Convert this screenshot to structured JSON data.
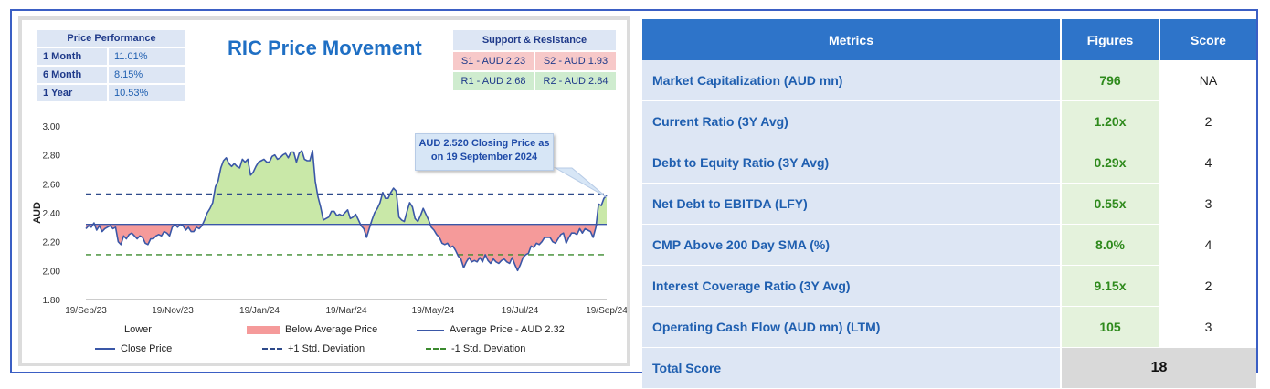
{
  "chart_panel": {
    "title": "RIC Price Movement",
    "price_performance": {
      "header": "Price Performance",
      "rows": [
        {
          "label": "1 Month",
          "value": "11.01%"
        },
        {
          "label": "6 Month",
          "value": "8.15%"
        },
        {
          "label": "1 Year",
          "value": "10.53%"
        }
      ]
    },
    "support_resistance": {
      "header": "Support & Resistance",
      "s1": "S1 - AUD 2.23",
      "s2": "S2 - AUD 1.93",
      "r1": "R1 - AUD 2.68",
      "r2": "R2 - AUD 2.84"
    },
    "callout_line1": "AUD 2.520 Closing Price as",
    "callout_line2": "on 19 September 2024",
    "legend": {
      "lower": "Lower",
      "below_avg": "Below Average Price",
      "avg": "Average Price - AUD 2.32",
      "close": "Close Price",
      "plus_sd": "+1 Std. Deviation",
      "minus_sd": "-1 Std. Deviation"
    },
    "colors": {
      "close": "#3a57a7",
      "below_fill": "#f59a9a",
      "above_fill": "#c9e8a8",
      "plus_sd": "#2e4a8a",
      "minus_sd": "#3b8a2e",
      "avg": "#3a57a7"
    }
  },
  "chart_data": {
    "type": "area",
    "ylabel": "AUD",
    "ylim": [
      1.8,
      3.0
    ],
    "yticks": [
      "3.00",
      "2.80",
      "2.60",
      "2.40",
      "2.20",
      "2.00",
      "1.80"
    ],
    "xticks": [
      "19/Sep/23",
      "19/Nov/23",
      "19/Jan/24",
      "19/Mar/24",
      "19/May/24",
      "19/Jul/24",
      "19/Sep/24"
    ],
    "average": 2.32,
    "plus_1sd": 2.53,
    "minus_1sd": 2.11,
    "last_close": 2.52,
    "series": [
      {
        "name": "Close Price",
        "values": [
          2.29,
          2.31,
          2.3,
          2.33,
          2.28,
          2.31,
          2.27,
          2.29,
          2.3,
          2.31,
          2.29,
          2.3,
          2.2,
          2.18,
          2.24,
          2.22,
          2.25,
          2.26,
          2.24,
          2.22,
          2.24,
          2.23,
          2.19,
          2.18,
          2.22,
          2.22,
          2.24,
          2.25,
          2.24,
          2.27,
          2.26,
          2.24,
          2.3,
          2.32,
          2.3,
          2.32,
          2.31,
          2.28,
          2.3,
          2.27,
          2.27,
          2.3,
          2.29,
          2.31,
          2.35,
          2.4,
          2.43,
          2.47,
          2.58,
          2.62,
          2.71,
          2.76,
          2.78,
          2.74,
          2.72,
          2.74,
          2.72,
          2.71,
          2.77,
          2.75,
          2.77,
          2.66,
          2.68,
          2.72,
          2.75,
          2.76,
          2.77,
          2.75,
          2.75,
          2.79,
          2.8,
          2.77,
          2.78,
          2.8,
          2.81,
          2.78,
          2.82,
          2.82,
          2.75,
          2.81,
          2.83,
          2.77,
          2.76,
          2.76,
          2.83,
          2.62,
          2.51,
          2.44,
          2.35,
          2.36,
          2.37,
          2.41,
          2.41,
          2.38,
          2.39,
          2.38,
          2.4,
          2.42,
          2.36,
          2.37,
          2.39,
          2.35,
          2.31,
          2.29,
          2.23,
          2.29,
          2.35,
          2.4,
          2.43,
          2.47,
          2.54,
          2.5,
          2.5,
          2.54,
          2.57,
          2.55,
          2.37,
          2.35,
          2.34,
          2.41,
          2.47,
          2.44,
          2.36,
          2.34,
          2.38,
          2.43,
          2.39,
          2.35,
          2.3,
          2.28,
          2.25,
          2.23,
          2.19,
          2.18,
          2.19,
          2.16,
          2.17,
          2.14,
          2.1,
          2.08,
          2.02,
          2.06,
          2.09,
          2.06,
          2.07,
          2.06,
          2.09,
          2.06,
          2.11,
          2.07,
          2.05,
          2.08,
          2.06,
          2.05,
          2.07,
          2.08,
          2.06,
          2.05,
          2.09,
          2.04,
          2.0,
          2.04,
          2.09,
          2.11,
          2.12,
          2.17,
          2.16,
          2.19,
          2.18,
          2.2,
          2.23,
          2.23,
          2.23,
          2.2,
          2.19,
          2.22,
          2.25,
          2.26,
          2.19,
          2.23,
          2.26,
          2.26,
          2.25,
          2.29,
          2.26,
          2.29,
          2.28,
          2.27,
          2.23,
          2.3,
          2.46,
          2.45,
          2.5,
          2.52
        ]
      }
    ]
  },
  "metrics_table": {
    "headers": [
      "Metrics",
      "Figures",
      "Score"
    ],
    "rows": [
      {
        "metric": "Market Capitalization (AUD mn)",
        "figure": "796",
        "score": "NA"
      },
      {
        "metric": "Current Ratio (3Y Avg)",
        "figure": "1.20x",
        "score": "2"
      },
      {
        "metric": "Debt to Equity Ratio (3Y Avg)",
        "figure": "0.29x",
        "score": "4"
      },
      {
        "metric": "Net Debt to EBITDA (LFY)",
        "figure": "0.55x",
        "score": "3"
      },
      {
        "metric": "CMP Above 200 Day SMA (%)",
        "figure": "8.0%",
        "score": "4"
      },
      {
        "metric": "Interest Coverage Ratio (3Y Avg)",
        "figure": "9.15x",
        "score": "2"
      },
      {
        "metric": "Operating Cash Flow (AUD mn) (LTM)",
        "figure": "105",
        "score": "3"
      }
    ],
    "total_label": "Total Score",
    "total_value": "18"
  }
}
